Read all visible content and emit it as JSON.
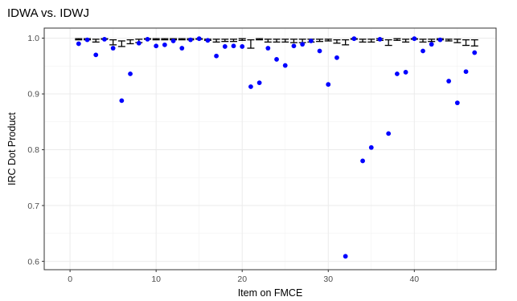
{
  "chart_data": {
    "type": "scatter",
    "title": "IDWA vs. IDWJ",
    "xlabel": "Item on FMCE",
    "ylabel": "IRC Dot Product",
    "xlim": [
      -3,
      49.5
    ],
    "ylim": [
      0.585,
      1.018
    ],
    "x_ticks": [
      0,
      10,
      20,
      30,
      40
    ],
    "y_ticks": [
      0.6,
      0.7,
      0.8,
      0.9,
      1.0
    ],
    "y_tick_labels": [
      "0.6",
      "0.7",
      "0.8",
      "0.9",
      "1.0"
    ],
    "grid": true,
    "point_color": "#0000ff",
    "errorbar_color": "#000000",
    "points": [
      {
        "x": 1,
        "y": 0.99
      },
      {
        "x": 2,
        "y": 0.997
      },
      {
        "x": 3,
        "y": 0.97
      },
      {
        "x": 4,
        "y": 0.998
      },
      {
        "x": 5,
        "y": 0.982
      },
      {
        "x": 6,
        "y": 0.888
      },
      {
        "x": 7,
        "y": 0.936
      },
      {
        "x": 8,
        "y": 0.991
      },
      {
        "x": 9,
        "y": 0.998
      },
      {
        "x": 10,
        "y": 0.986
      },
      {
        "x": 11,
        "y": 0.988
      },
      {
        "x": 12,
        "y": 0.995
      },
      {
        "x": 13,
        "y": 0.982
      },
      {
        "x": 14,
        "y": 0.997
      },
      {
        "x": 15,
        "y": 0.999
      },
      {
        "x": 16,
        "y": 0.996
      },
      {
        "x": 17,
        "y": 0.968
      },
      {
        "x": 18,
        "y": 0.985
      },
      {
        "x": 19,
        "y": 0.986
      },
      {
        "x": 20,
        "y": 0.985
      },
      {
        "x": 21,
        "y": 0.913
      },
      {
        "x": 22,
        "y": 0.92
      },
      {
        "x": 23,
        "y": 0.982
      },
      {
        "x": 24,
        "y": 0.962
      },
      {
        "x": 25,
        "y": 0.951
      },
      {
        "x": 26,
        "y": 0.986
      },
      {
        "x": 27,
        "y": 0.989
      },
      {
        "x": 28,
        "y": 0.995
      },
      {
        "x": 29,
        "y": 0.977
      },
      {
        "x": 30,
        "y": 0.917
      },
      {
        "x": 31,
        "y": 0.965
      },
      {
        "x": 32,
        "y": 0.609
      },
      {
        "x": 33,
        "y": 0.999
      },
      {
        "x": 34,
        "y": 0.78
      },
      {
        "x": 35,
        "y": 0.804
      },
      {
        "x": 36,
        "y": 0.998
      },
      {
        "x": 37,
        "y": 0.829
      },
      {
        "x": 38,
        "y": 0.936
      },
      {
        "x": 39,
        "y": 0.939
      },
      {
        "x": 40,
        "y": 0.999
      },
      {
        "x": 41,
        "y": 0.977
      },
      {
        "x": 42,
        "y": 0.989
      },
      {
        "x": 43,
        "y": 0.997
      },
      {
        "x": 44,
        "y": 0.923
      },
      {
        "x": 45,
        "y": 0.884
      },
      {
        "x": 46,
        "y": 0.94
      },
      {
        "x": 47,
        "y": 0.974
      }
    ],
    "errorbars": [
      {
        "x": 1,
        "lo": 0.997,
        "hi": 0.999
      },
      {
        "x": 2,
        "lo": 0.997,
        "hi": 0.999
      },
      {
        "x": 3,
        "lo": 0.993,
        "hi": 0.998
      },
      {
        "x": 4,
        "lo": 0.998,
        "hi": 0.999
      },
      {
        "x": 5,
        "lo": 0.988,
        "hi": 0.997
      },
      {
        "x": 6,
        "lo": 0.985,
        "hi": 0.995
      },
      {
        "x": 7,
        "lo": 0.99,
        "hi": 0.997
      },
      {
        "x": 8,
        "lo": 0.992,
        "hi": 0.998
      },
      {
        "x": 9,
        "lo": 0.998,
        "hi": 0.999
      },
      {
        "x": 10,
        "lo": 0.997,
        "hi": 0.999
      },
      {
        "x": 11,
        "lo": 0.997,
        "hi": 0.999
      },
      {
        "x": 12,
        "lo": 0.997,
        "hi": 0.999
      },
      {
        "x": 13,
        "lo": 0.997,
        "hi": 0.999
      },
      {
        "x": 14,
        "lo": 0.997,
        "hi": 0.999
      },
      {
        "x": 15,
        "lo": 0.998,
        "hi": 0.999
      },
      {
        "x": 16,
        "lo": 0.996,
        "hi": 0.998
      },
      {
        "x": 17,
        "lo": 0.993,
        "hi": 0.998
      },
      {
        "x": 18,
        "lo": 0.994,
        "hi": 0.998
      },
      {
        "x": 19,
        "lo": 0.994,
        "hi": 0.998
      },
      {
        "x": 20,
        "lo": 0.996,
        "hi": 0.999
      },
      {
        "x": 21,
        "lo": 0.982,
        "hi": 0.997
      },
      {
        "x": 22,
        "lo": 0.997,
        "hi": 0.999
      },
      {
        "x": 23,
        "lo": 0.993,
        "hi": 0.998
      },
      {
        "x": 24,
        "lo": 0.993,
        "hi": 0.998
      },
      {
        "x": 25,
        "lo": 0.993,
        "hi": 0.998
      },
      {
        "x": 26,
        "lo": 0.992,
        "hi": 0.998
      },
      {
        "x": 27,
        "lo": 0.992,
        "hi": 0.998
      },
      {
        "x": 28,
        "lo": 0.993,
        "hi": 0.998
      },
      {
        "x": 29,
        "lo": 0.994,
        "hi": 0.998
      },
      {
        "x": 30,
        "lo": 0.995,
        "hi": 0.998
      },
      {
        "x": 31,
        "lo": 0.991,
        "hi": 0.997
      },
      {
        "x": 32,
        "lo": 0.988,
        "hi": 0.997
      },
      {
        "x": 33,
        "lo": 0.998,
        "hi": 0.999
      },
      {
        "x": 34,
        "lo": 0.993,
        "hi": 0.998
      },
      {
        "x": 35,
        "lo": 0.993,
        "hi": 0.998
      },
      {
        "x": 36,
        "lo": 0.996,
        "hi": 0.999
      },
      {
        "x": 37,
        "lo": 0.987,
        "hi": 0.997
      },
      {
        "x": 38,
        "lo": 0.996,
        "hi": 0.999
      },
      {
        "x": 39,
        "lo": 0.993,
        "hi": 0.998
      },
      {
        "x": 40,
        "lo": 0.998,
        "hi": 0.999
      },
      {
        "x": 41,
        "lo": 0.993,
        "hi": 0.998
      },
      {
        "x": 42,
        "lo": 0.994,
        "hi": 0.998
      },
      {
        "x": 43,
        "lo": 0.997,
        "hi": 0.999
      },
      {
        "x": 44,
        "lo": 0.995,
        "hi": 0.998
      },
      {
        "x": 45,
        "lo": 0.992,
        "hi": 0.998
      },
      {
        "x": 46,
        "lo": 0.987,
        "hi": 0.997
      },
      {
        "x": 47,
        "lo": 0.986,
        "hi": 0.997
      }
    ]
  }
}
